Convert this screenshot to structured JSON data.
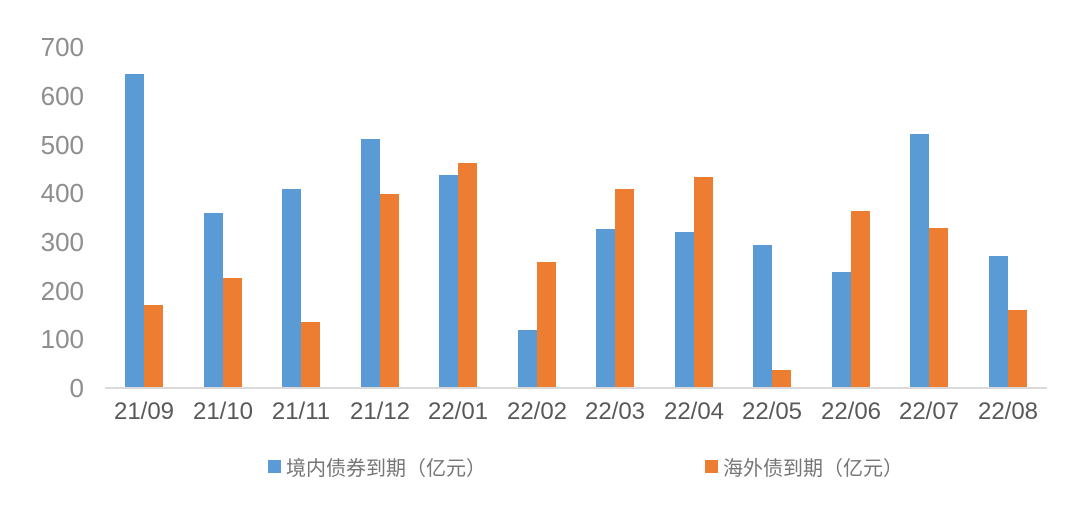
{
  "chart_data": {
    "type": "bar",
    "title": "",
    "xlabel": "",
    "ylabel": "",
    "categories": [
      "21/09",
      "21/10",
      "21/11",
      "21/12",
      "22/01",
      "22/02",
      "22/03",
      "22/04",
      "22/05",
      "22/06",
      "22/07",
      "22/08"
    ],
    "series": [
      {
        "name": "境内债券到期（亿元）",
        "color": "#5B9BD5",
        "values": [
          645,
          359,
          408,
          512,
          437,
          119,
          326,
          321,
          294,
          238,
          521,
          272
        ]
      },
      {
        "name": "海外债到期（亿元）",
        "color": "#ED7D31",
        "values": [
          170,
          226,
          136,
          399,
          461,
          259,
          409,
          433,
          36,
          363,
          329,
          160
        ]
      }
    ],
    "ylim": [
      0,
      700
    ],
    "yticks": [
      0,
      100,
      200,
      300,
      400,
      500,
      600,
      700
    ],
    "grid": false,
    "legend_position": "bottom"
  },
  "colors": {
    "background": "#FFFFFF",
    "axis_line": "#D9D9D9",
    "ytick_text": "#8E8E8E",
    "xtick_text": "#595959",
    "legend_text": "#767676"
  }
}
